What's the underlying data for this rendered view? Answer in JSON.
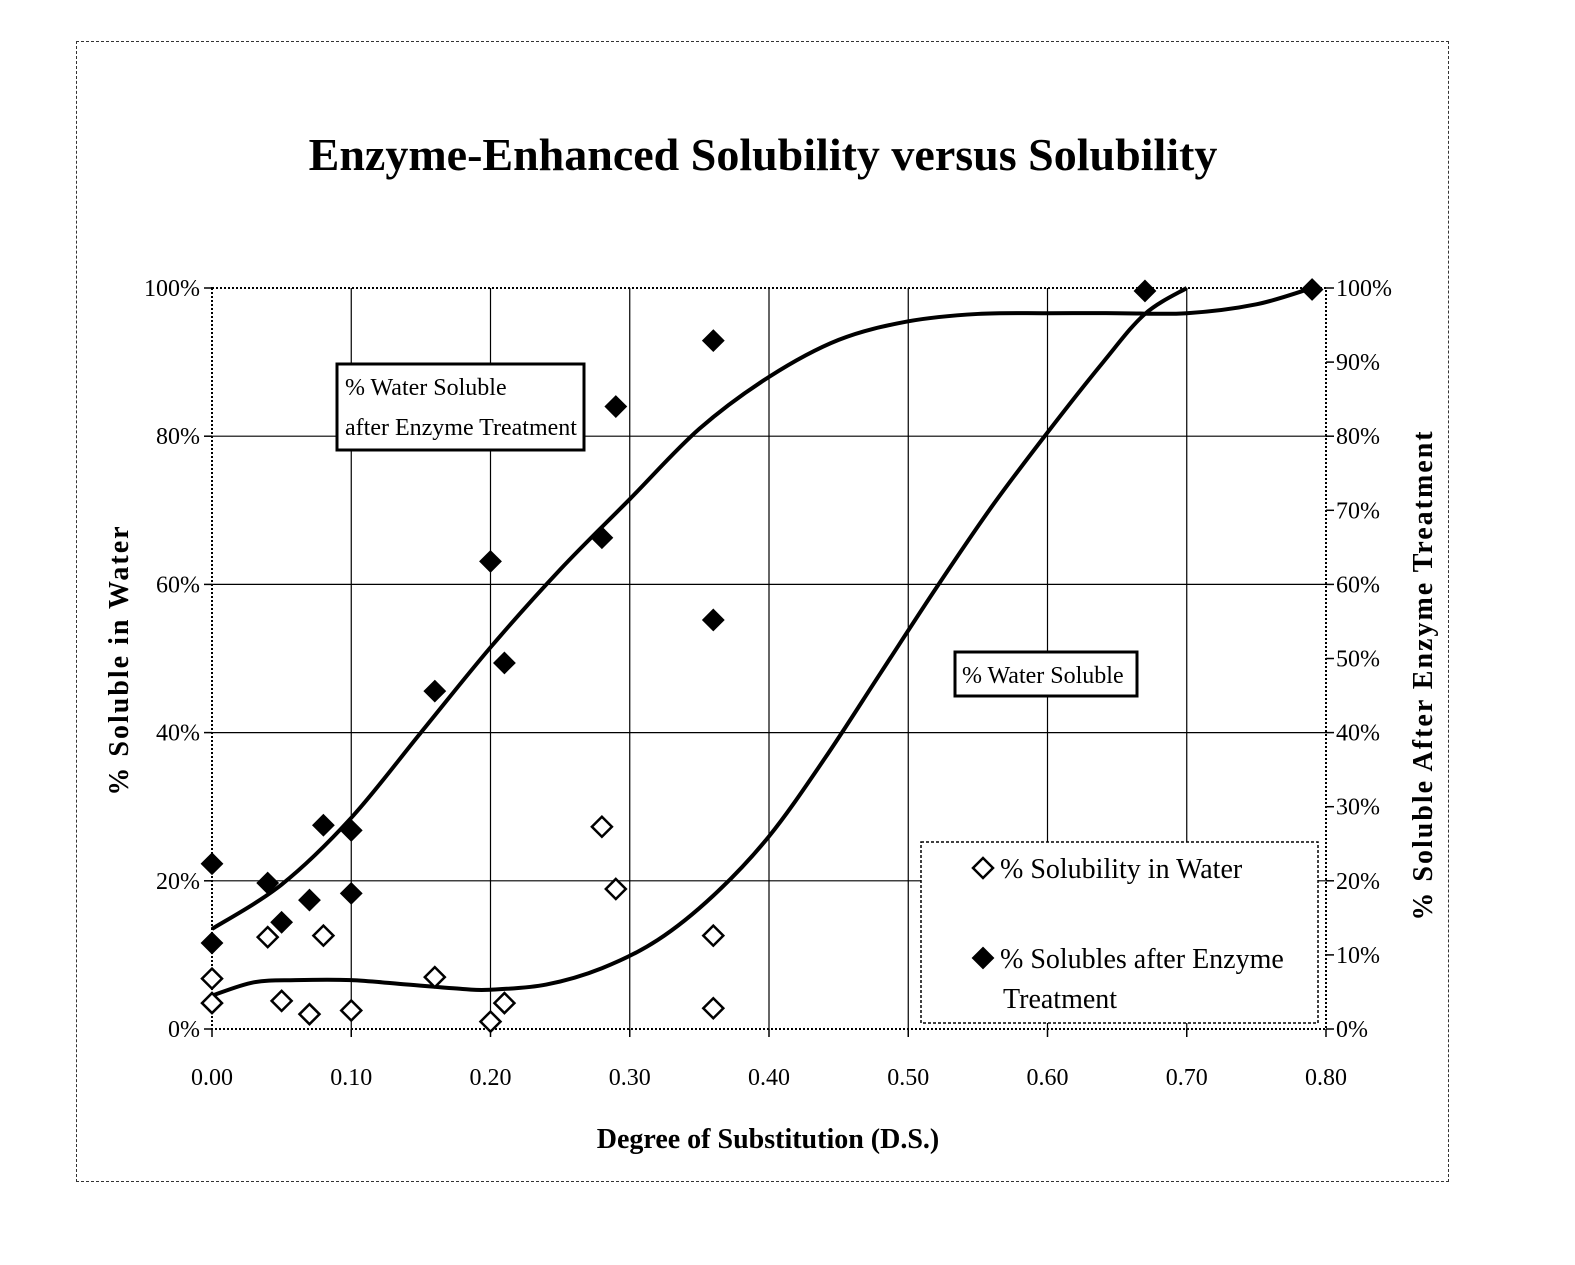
{
  "chart_data": {
    "type": "scatter",
    "title": "Enzyme-Enhanced Solubility versus Solubility",
    "xlabel": "Degree of Substitution (D.S.)",
    "ylabel": "% Soluble in Water",
    "y2label": "% Soluble  After Enzyme Treatment",
    "xlim": [
      0,
      0.8
    ],
    "ylim": [
      0,
      100
    ],
    "x_ticks": [
      "0.00",
      "0.10",
      "0.20",
      "0.30",
      "0.40",
      "0.50",
      "0.60",
      "0.70",
      "0.80"
    ],
    "y_ticks": [
      "0%",
      "20%",
      "40%",
      "60%",
      "80%",
      "100%"
    ],
    "y2_ticks": [
      "0%",
      "10%",
      "20%",
      "30%",
      "40%",
      "50%",
      "60%",
      "70%",
      "80%",
      "90%",
      "100%"
    ],
    "grid": true,
    "legend_position": "bottom-right",
    "series": [
      {
        "name": "% Solubility in Water",
        "marker": "open-diamond",
        "x": [
          0.0,
          0.0,
          0.04,
          0.05,
          0.07,
          0.08,
          0.1,
          0.16,
          0.2,
          0.21,
          0.28,
          0.29,
          0.36,
          0.36
        ],
        "y": [
          3.5,
          6.8,
          12.4,
          3.8,
          2.0,
          12.6,
          2.5,
          7.0,
          1.0,
          3.5,
          27.3,
          18.9,
          12.6,
          2.8
        ]
      },
      {
        "name": "% Solubles after Enzyme Treatment",
        "marker": "filled-diamond",
        "x": [
          0.0,
          0.0,
          0.04,
          0.05,
          0.07,
          0.08,
          0.1,
          0.1,
          0.16,
          0.2,
          0.21,
          0.28,
          0.29,
          0.36,
          0.36,
          0.67,
          0.79
        ],
        "y": [
          11.6,
          22.3,
          19.7,
          14.4,
          17.4,
          27.5,
          26.8,
          18.3,
          45.6,
          63.1,
          49.4,
          66.3,
          84.0,
          92.9,
          55.2,
          99.6,
          99.8
        ]
      }
    ],
    "trendlines": [
      {
        "series": "% Water Soluble",
        "x": [
          0.0,
          0.03,
          0.06,
          0.1,
          0.14,
          0.18,
          0.2,
          0.24,
          0.28,
          0.32,
          0.36,
          0.4,
          0.44,
          0.48,
          0.52,
          0.56,
          0.6,
          0.64,
          0.67,
          0.7
        ],
        "y": [
          4.5,
          6.3,
          6.6,
          6.6,
          6.0,
          5.4,
          5.3,
          6.0,
          8.2,
          12.0,
          18.0,
          26.0,
          36.5,
          48.0,
          59.5,
          70.5,
          80.5,
          90.0,
          96.5,
          100.0
        ]
      },
      {
        "series": "% Water Soluble after Enzyme Treatment",
        "x": [
          0.0,
          0.05,
          0.1,
          0.15,
          0.2,
          0.25,
          0.3,
          0.35,
          0.4,
          0.45,
          0.5,
          0.55,
          0.6,
          0.65,
          0.7,
          0.75,
          0.79
        ],
        "y": [
          13.5,
          19.5,
          28.5,
          40.0,
          51.5,
          62.0,
          71.5,
          81.0,
          88.0,
          93.0,
          95.5,
          96.5,
          96.6,
          96.6,
          96.6,
          97.8,
          100.0
        ]
      }
    ],
    "annotations": [
      {
        "text": "% Water Soluble",
        "text2": "after Enzyme Treatment"
      },
      {
        "text": "% Water Soluble"
      }
    ],
    "legend": {
      "entries": [
        "% Solubility in Water",
        "% Solubles after Enzyme",
        "Treatment"
      ]
    }
  }
}
